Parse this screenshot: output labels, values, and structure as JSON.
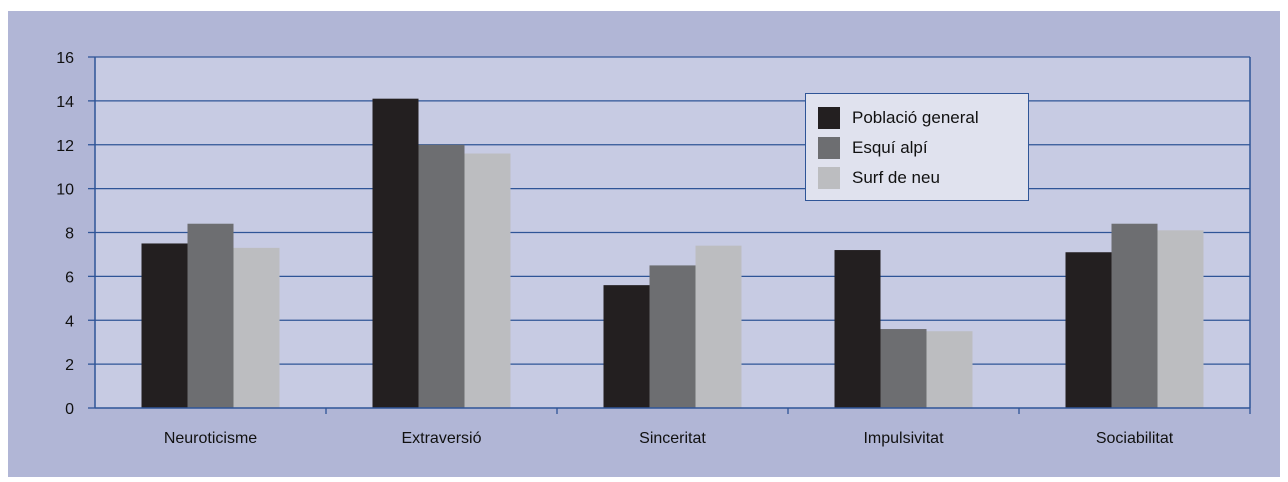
{
  "colors": {
    "background": "#b1b6d6",
    "plot_background": "#c7cbe3",
    "axis": "#2f5597",
    "gridline": "#2f5597"
  },
  "chart_data": {
    "type": "bar",
    "categories": [
      "Neuroticisme",
      "Extraversió",
      "Sinceritat",
      "Impulsivitat",
      "Sociabilitat"
    ],
    "series": [
      {
        "name": "Població general",
        "color": "#231f20",
        "values": [
          7.5,
          14.1,
          5.6,
          7.2,
          7.1
        ]
      },
      {
        "name": "Esquí alpí",
        "color": "#6d6e71",
        "values": [
          8.4,
          12.0,
          6.5,
          3.6,
          8.4
        ]
      },
      {
        "name": "Surf de neu",
        "color": "#bcbdc0",
        "values": [
          7.3,
          11.6,
          7.4,
          3.5,
          8.1
        ]
      }
    ],
    "yticks": [
      0,
      2,
      4,
      6,
      8,
      10,
      12,
      14,
      16
    ],
    "ylim": [
      0,
      16
    ],
    "grid": true,
    "legend_position": "top-right-inside"
  }
}
